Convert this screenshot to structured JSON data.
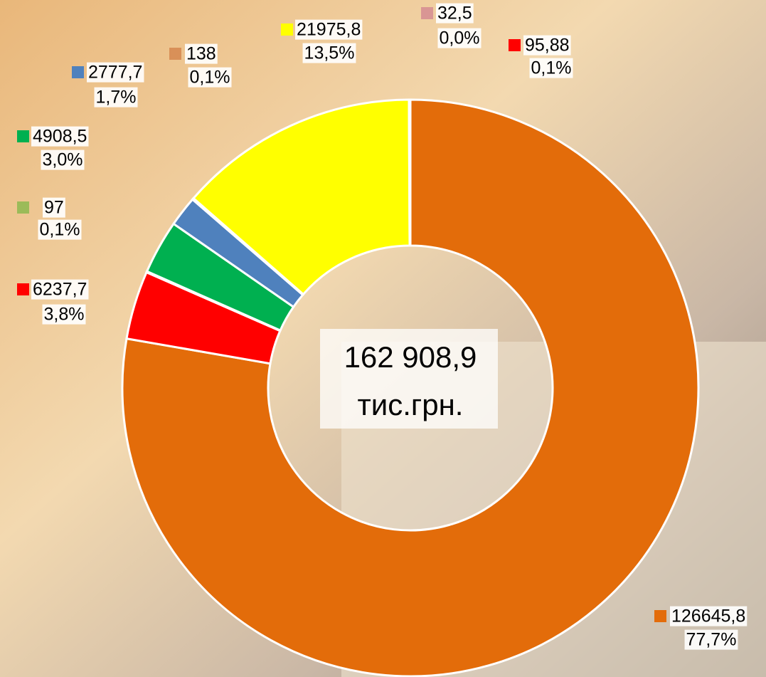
{
  "chart_data": {
    "type": "donut",
    "center_text": [
      "162 908,9",
      "тис.грн."
    ],
    "series": [
      {
        "color": "#e36c0a",
        "values": [
          126645.8,
          6237.7,
          97,
          4908.5,
          2777.7,
          138,
          21975.8,
          32.5,
          95.88
        ]
      }
    ],
    "value_labels": [
      "126645,8",
      "6237,7",
      "97",
      "4908,5",
      "2777,7",
      "138",
      "21975,8",
      "32,5",
      "95,88"
    ],
    "colors": [
      "#e36c0a",
      "#ff0000",
      "#9bbb59",
      "#00b050",
      "#4f81bd",
      "#d99058",
      "#ffff00",
      "#d99694",
      "#ff0000"
    ],
    "percents": [
      77.7,
      3.8,
      0.1,
      3.0,
      1.7,
      0.1,
      13.5,
      0.0,
      0.1
    ],
    "percent_labels": [
      "77,7%",
      "3,8%",
      "0,1%",
      "3,0%",
      "1,7%",
      "0,1%",
      "13,5%",
      "0,0%",
      "0,1%"
    ]
  }
}
